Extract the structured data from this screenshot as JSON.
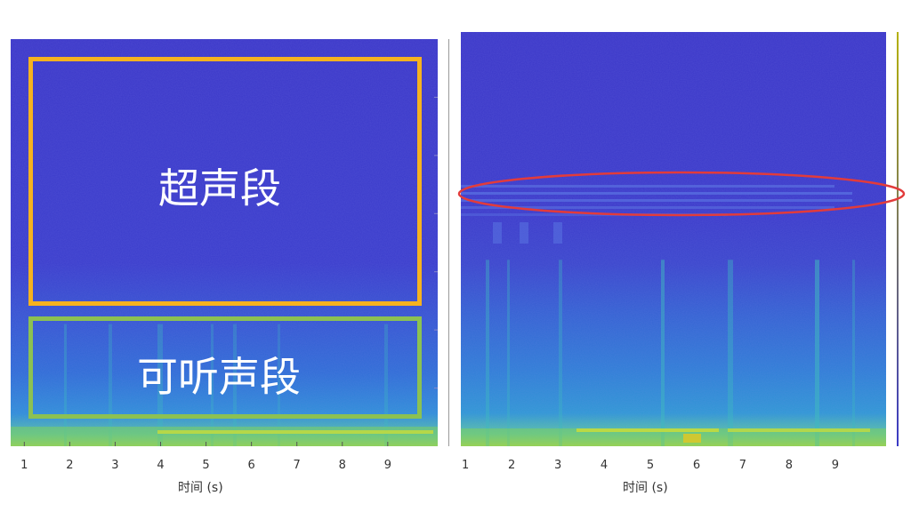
{
  "chart_data": [
    {
      "type": "heatmap",
      "xlabel": "时间 (s)",
      "x_ticks": [
        1,
        2,
        3,
        4,
        5,
        6,
        7,
        8,
        9
      ],
      "xlim": [
        0.7,
        10.1
      ],
      "annotations": [
        {
          "label": "超声段",
          "shape": "rectangle",
          "color": "#F6B21F"
        },
        {
          "label": "可听声段",
          "shape": "rectangle",
          "color": "#8CC152"
        }
      ]
    },
    {
      "type": "heatmap",
      "xlabel": "时间 (s)",
      "x_ticks": [
        1,
        2,
        3,
        4,
        5,
        6,
        7,
        8,
        9
      ],
      "xlim": [
        0.9,
        10.1
      ],
      "annotations": [
        {
          "label": "",
          "shape": "ellipse",
          "color": "#E23B3B"
        }
      ]
    }
  ],
  "colors": {
    "background": "#3A3AC6",
    "low_band": "#2F7FD9",
    "energy": "#3FB8C0",
    "floor": "#B9D83A"
  }
}
